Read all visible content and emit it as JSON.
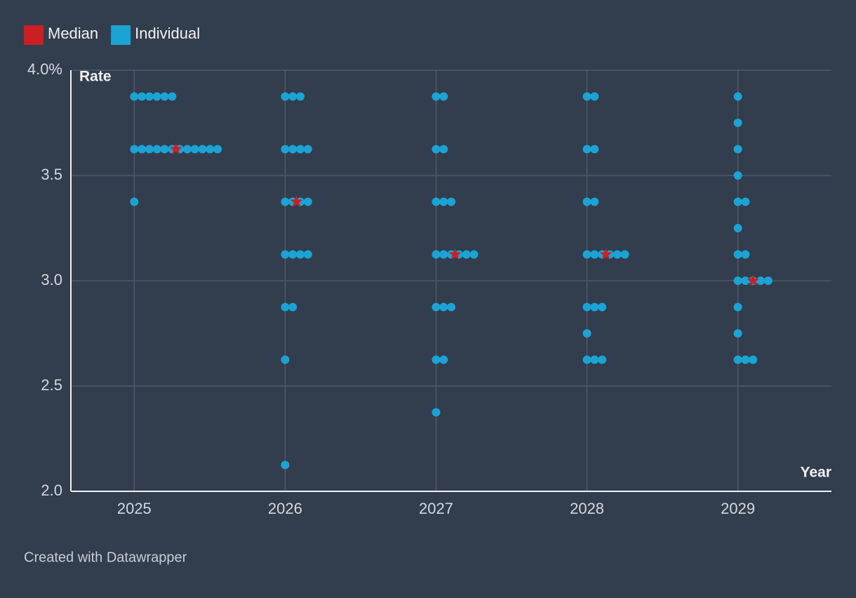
{
  "chart_data": {
    "type": "dot",
    "y_label": "Rate",
    "x_label": "Year",
    "footer": "Created with Datawrapper",
    "xlim": [
      2024.58,
      2029.62
    ],
    "xticks": [
      2025,
      2026,
      2027,
      2028,
      2029
    ],
    "ylim": [
      2,
      4
    ],
    "yticks": [
      {
        "value": 2,
        "label": "2.0"
      },
      2.5,
      {
        "value": 3,
        "label": "3.0"
      },
      3.5,
      {
        "value": 4,
        "label": "4.0%"
      }
    ],
    "grid": true,
    "series": [
      {
        "name": "Median",
        "color": "#cc1f25",
        "marker": "star",
        "x": [
          2025,
          2026,
          2027,
          2028,
          2029
        ],
        "values": [
          3.625,
          3.375,
          3.125,
          3.125,
          3.0
        ]
      },
      {
        "name": "Individual",
        "color": "#1ba3d4",
        "marker": "circle",
        "x": [
          2025,
          2025,
          2025,
          2025,
          2025,
          2025,
          2025,
          2025,
          2025,
          2025,
          2025,
          2025,
          2025,
          2025,
          2025,
          2025,
          2025,
          2025,
          2025,
          2026,
          2026,
          2026,
          2026,
          2026,
          2026,
          2026,
          2026,
          2026,
          2026,
          2026,
          2026,
          2026,
          2026,
          2026,
          2026,
          2026,
          2026,
          2026,
          2027,
          2027,
          2027,
          2027,
          2027,
          2027,
          2027,
          2027,
          2027,
          2027,
          2027,
          2027,
          2027,
          2027,
          2027,
          2027,
          2027,
          2027,
          2027,
          2028,
          2028,
          2028,
          2028,
          2028,
          2028,
          2028,
          2028,
          2028,
          2028,
          2028,
          2028,
          2028,
          2028,
          2028,
          2028,
          2028,
          2028,
          2028,
          2029,
          2029,
          2029,
          2029,
          2029,
          2029,
          2029,
          2029,
          2029,
          2029,
          2029,
          2029,
          2029,
          2029,
          2029,
          2029,
          2029,
          2029,
          2029
        ],
        "values": [
          3.875,
          3.875,
          3.875,
          3.875,
          3.875,
          3.875,
          3.625,
          3.625,
          3.625,
          3.625,
          3.625,
          3.625,
          3.625,
          3.625,
          3.625,
          3.625,
          3.625,
          3.625,
          3.375,
          3.875,
          3.875,
          3.875,
          3.625,
          3.625,
          3.625,
          3.625,
          3.375,
          3.375,
          3.375,
          3.375,
          3.125,
          3.125,
          3.125,
          3.125,
          2.875,
          2.875,
          2.625,
          2.125,
          3.875,
          3.875,
          3.625,
          3.625,
          3.375,
          3.375,
          3.375,
          3.125,
          3.125,
          3.125,
          3.125,
          3.125,
          3.125,
          2.875,
          2.875,
          2.875,
          2.625,
          2.625,
          2.375,
          3.875,
          3.875,
          3.625,
          3.625,
          3.375,
          3.375,
          3.125,
          3.125,
          3.125,
          3.125,
          3.125,
          3.125,
          2.875,
          2.875,
          2.875,
          2.75,
          2.625,
          2.625,
          2.625,
          3.875,
          3.75,
          3.625,
          3.5,
          3.375,
          3.375,
          3.25,
          3.125,
          3.125,
          3.0,
          3.0,
          3.0,
          3.0,
          3.0,
          2.875,
          2.75,
          2.625,
          2.625,
          2.625
        ]
      }
    ]
  }
}
